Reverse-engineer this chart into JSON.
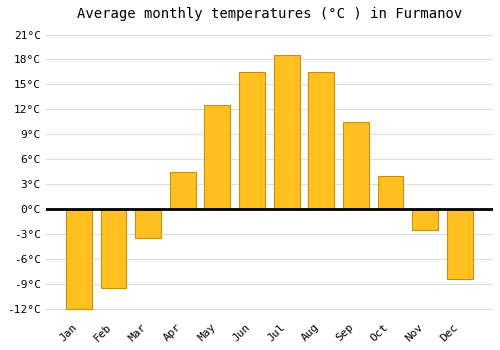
{
  "title": "Average monthly temperatures (°C ) in Furmanov",
  "months": [
    "Jan",
    "Feb",
    "Mar",
    "Apr",
    "May",
    "Jun",
    "Jul",
    "Aug",
    "Sep",
    "Oct",
    "Nov",
    "Dec"
  ],
  "values": [
    -12,
    -9.5,
    -3.5,
    4.5,
    12.5,
    16.5,
    18.5,
    16.5,
    10.5,
    4,
    -2.5,
    -8.5
  ],
  "bar_color": "#FFC020",
  "bar_edge_color": "#C89010",
  "ylim": [
    -13,
    22
  ],
  "yticks": [
    -12,
    -9,
    -6,
    -3,
    0,
    3,
    6,
    9,
    12,
    15,
    18,
    21
  ],
  "ytick_labels": [
    "-12°C",
    "-9°C",
    "-6°C",
    "-3°C",
    "0°C",
    "3°C",
    "6°C",
    "9°C",
    "12°C",
    "15°C",
    "18°C",
    "21°C"
  ],
  "background_color": "#FFFFFF",
  "grid_color": "#DDDDDD",
  "title_fontsize": 10,
  "tick_fontsize": 8,
  "bar_width": 0.75
}
